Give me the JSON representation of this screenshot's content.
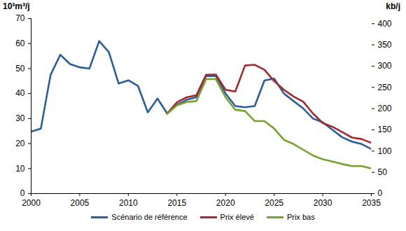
{
  "chart_data": {
    "type": "line",
    "ylabel": "10³m³/j",
    "y2label": "kb/j",
    "x": [
      2000,
      2001,
      2002,
      2003,
      2004,
      2005,
      2006,
      2007,
      2008,
      2009,
      2010,
      2011,
      2012,
      2013,
      2014,
      2015,
      2016,
      2017,
      2018,
      2019,
      2020,
      2021,
      2022,
      2023,
      2024,
      2025,
      2026,
      2027,
      2028,
      2029,
      2030,
      2031,
      2032,
      2033,
      2034,
      2035
    ],
    "xlim": [
      2000,
      2035
    ],
    "xticks": [
      2000,
      2005,
      2010,
      2015,
      2020,
      2025,
      2030,
      2035
    ],
    "ylim": [
      0,
      70
    ],
    "yticks": [
      0,
      10,
      20,
      30,
      40,
      50,
      60,
      70
    ],
    "y2lim": [
      0,
      412
    ],
    "y2ticks": [
      0,
      50,
      100,
      150,
      200,
      250,
      300,
      350,
      400
    ],
    "grid": false,
    "legend": "bottom",
    "series": [
      {
        "name": "Scénario de référence",
        "color": "#2b5d9b",
        "values": [
          24.8,
          26,
          47.5,
          55.5,
          51.8,
          50.5,
          50,
          61,
          56.5,
          44,
          45.3,
          43,
          32.5,
          38,
          32,
          35.5,
          37.5,
          38.5,
          47,
          47,
          40,
          35,
          34.5,
          35,
          45.2,
          46,
          40,
          37,
          34,
          30,
          28.5,
          25.5,
          22.5,
          20.8,
          19.8,
          17.8
        ]
      },
      {
        "name": "Prix élevé",
        "color": "#a4282d",
        "values": [
          null,
          null,
          null,
          null,
          null,
          null,
          null,
          null,
          null,
          null,
          null,
          null,
          null,
          null,
          32,
          36.5,
          38.5,
          39.3,
          47.5,
          47.6,
          41.5,
          40.8,
          51.2,
          51.5,
          49.5,
          45,
          41.5,
          38.8,
          36.7,
          32,
          28.2,
          26.7,
          24.6,
          22.4,
          21.8,
          20.3
        ]
      },
      {
        "name": "Prix bas",
        "color": "#78a22f",
        "values": [
          null,
          null,
          null,
          null,
          null,
          null,
          null,
          null,
          null,
          null,
          null,
          null,
          null,
          null,
          32,
          35.3,
          36.6,
          37,
          45.8,
          45.8,
          38.5,
          33.5,
          33,
          29,
          29,
          26,
          21.5,
          19.8,
          17.5,
          15.2,
          13.7,
          12.8,
          11.8,
          11,
          11,
          10
        ]
      }
    ]
  }
}
